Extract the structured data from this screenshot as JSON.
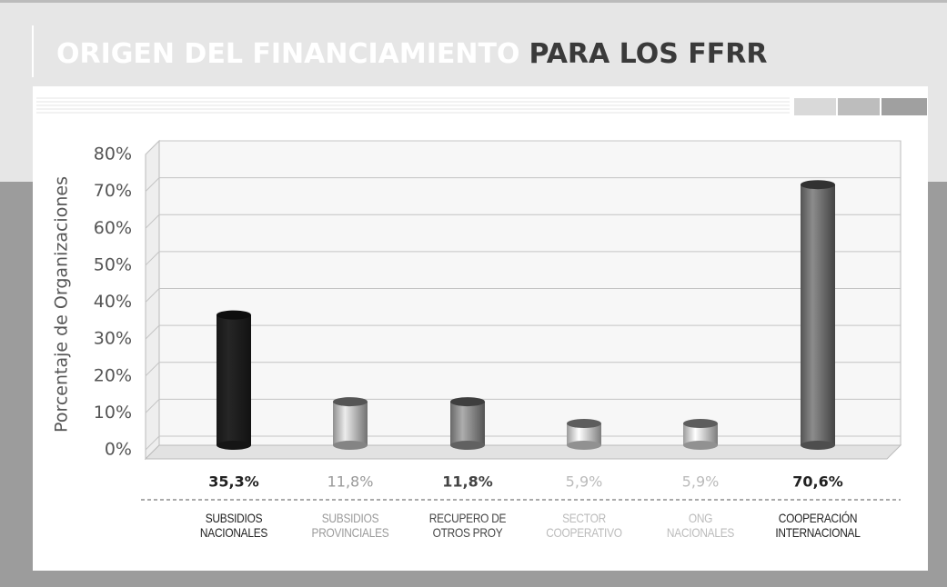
{
  "chart_data": {
    "type": "bar",
    "title": "ORIGEN DEL FINANCIAMIENTO",
    "title_suffix": "PARA LOS FFRR",
    "y_label": "Porcentaje de Organizaciones",
    "categories": [
      "SUBSIDIOS\nNACIONALES",
      "SUBSIDIOS\nPROVINCIALES",
      "RECUPERO DE\nOTROS PROY",
      "SECTOR\nCOOPERATIVO",
      "ONG\nNACIONALES",
      "COOPERACIÓN\nINTERNACIONAL"
    ],
    "values": [
      35.3,
      11.8,
      11.8,
      5.9,
      5.9,
      70.6
    ],
    "value_labels": [
      "35,3%",
      "11,8%",
      "11,8%",
      "5,9%",
      "5,9%",
      "70,6%"
    ],
    "colors": [
      "#1e1e1e",
      "#bdbdbd",
      "#8a8a8a",
      "#cfcfcf",
      "#cfcfcf",
      "#707070"
    ],
    "label_colors": [
      "#222222",
      "#9a9a9a",
      "#444444",
      "#bbbbbb",
      "#bbbbbb",
      "#222222"
    ],
    "ylim": [
      0,
      80
    ],
    "yticks": [
      {
        "value": 0,
        "label": "0%"
      },
      {
        "value": 10,
        "label": "10%"
      },
      {
        "value": 20,
        "label": "20%"
      },
      {
        "value": 30,
        "label": "30%"
      },
      {
        "value": 40,
        "label": "40%"
      },
      {
        "value": 50,
        "label": "50%"
      },
      {
        "value": 60,
        "label": "60%"
      },
      {
        "value": 70,
        "label": "70%"
      },
      {
        "value": 80,
        "label": "80%"
      }
    ],
    "grid": true
  }
}
